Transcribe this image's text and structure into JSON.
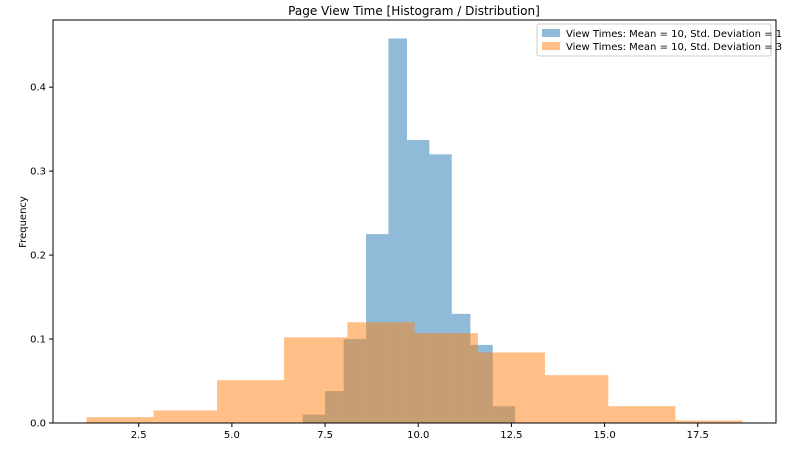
{
  "chart_data": {
    "type": "histogram",
    "title": "Page View Time [Histogram / Distribution]",
    "xlabel": "",
    "ylabel": "Frequency",
    "xlim": [
      0.2,
      19.6
    ],
    "ylim": [
      0,
      0.48
    ],
    "xticks": [
      {
        "value": 2.5,
        "label": "2.5"
      },
      {
        "value": 5.0,
        "label": "5.0"
      },
      {
        "value": 7.5,
        "label": "7.5"
      },
      {
        "value": 10.0,
        "label": "10.0"
      },
      {
        "value": 12.5,
        "label": "12.5"
      },
      {
        "value": 15.0,
        "label": "15.0"
      },
      {
        "value": 17.5,
        "label": "17.5"
      }
    ],
    "yticks": [
      {
        "value": 0.0,
        "label": "0.0"
      },
      {
        "value": 0.1,
        "label": "0.1"
      },
      {
        "value": 0.2,
        "label": "0.2"
      },
      {
        "value": 0.3,
        "label": "0.3"
      },
      {
        "value": 0.4,
        "label": "0.4"
      }
    ],
    "grid": false,
    "legend_position": "top-right",
    "series": [
      {
        "name": "View Times: Mean = 10, Std. Deviation = 1",
        "color": "#1f77b4",
        "alpha": 0.5,
        "bin_edges": [
          6.9,
          7.5,
          8.0,
          8.6,
          9.2,
          9.7,
          10.3,
          10.9,
          11.4,
          12.0,
          12.6
        ],
        "values": [
          0.01,
          0.038,
          0.1,
          0.225,
          0.458,
          0.337,
          0.32,
          0.13,
          0.093,
          0.02
        ]
      },
      {
        "name": "View Times: Mean = 10, Std. Deviation = 3",
        "color": "#ff7f0e",
        "alpha": 0.5,
        "bin_edges": [
          1.1,
          2.9,
          4.6,
          6.4,
          8.1,
          9.9,
          11.6,
          13.4,
          15.1,
          16.9,
          18.7
        ],
        "values": [
          0.007,
          0.015,
          0.051,
          0.102,
          0.12,
          0.107,
          0.084,
          0.057,
          0.02,
          0.003
        ]
      }
    ]
  }
}
